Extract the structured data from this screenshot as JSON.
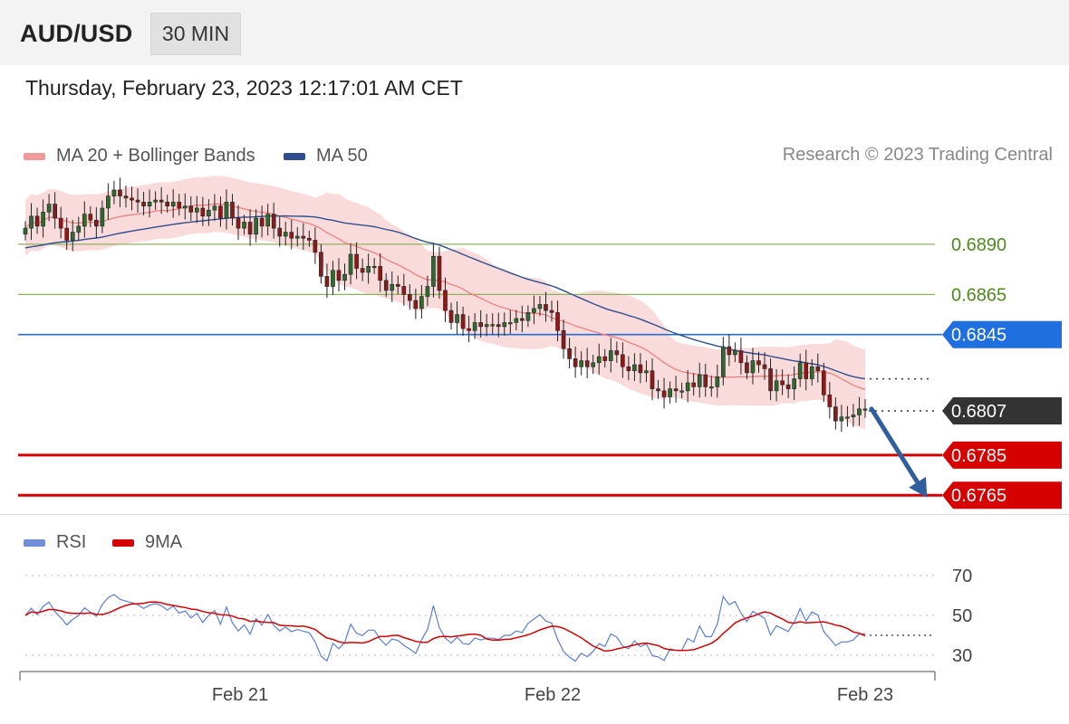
{
  "header": {
    "symbol": "AUD/USD",
    "timeframe": "30 MIN",
    "datetime": "Thursday, February 23, 2023 12:17:01 AM CET",
    "copyright": "Research © 2023 Trading Central"
  },
  "legend_main": [
    {
      "label": "MA 20 + Bollinger Bands",
      "color": "#f08a8a"
    },
    {
      "label": "MA 50",
      "color": "#2f4e8f"
    }
  ],
  "legend_rsi": [
    {
      "label": "RSI",
      "color": "#5b7fd6"
    },
    {
      "label": "9MA",
      "color": "#d60000"
    }
  ],
  "colors": {
    "up_candle": "#2e6b2e",
    "down_candle": "#8b1a1a",
    "bollinger_fill": "#f9d2d2",
    "ma20": "#f08080",
    "ma50": "#2f4e8f",
    "resistance": "#8db35a",
    "pivot": "#1f6fe0",
    "support": "#d60000",
    "current": "#333333",
    "arrow": "#2f5f9f"
  },
  "chart_data": [
    {
      "type": "line",
      "subtype": "candlestick",
      "y_unit": "price",
      "ylim": [
        0.6757,
        0.6926
      ],
      "x_ticks": [
        "Feb 21",
        "Feb 22",
        "Feb 23"
      ],
      "levels": [
        {
          "value": 0.689,
          "label": "0.6890",
          "kind": "resistance"
        },
        {
          "value": 0.6865,
          "label": "0.6865",
          "kind": "resistance"
        },
        {
          "value": 0.6845,
          "label": "0.6845",
          "kind": "pivot"
        },
        {
          "value": 0.6807,
          "label": "0.6807",
          "kind": "current"
        },
        {
          "value": 0.6785,
          "label": "0.6785",
          "kind": "support"
        },
        {
          "value": 0.6765,
          "label": "0.6765",
          "kind": "support"
        }
      ],
      "close": [
        0.6898,
        0.6904,
        0.6899,
        0.6906,
        0.691,
        0.6903,
        0.6898,
        0.6892,
        0.6896,
        0.6899,
        0.6905,
        0.6902,
        0.6899,
        0.6908,
        0.6914,
        0.6917,
        0.6914,
        0.6913,
        0.6912,
        0.6911,
        0.6909,
        0.6911,
        0.6912,
        0.6911,
        0.6909,
        0.6911,
        0.6908,
        0.6909,
        0.6906,
        0.6908,
        0.6904,
        0.6907,
        0.6909,
        0.6903,
        0.6911,
        0.6903,
        0.6898,
        0.6901,
        0.6895,
        0.6903,
        0.6899,
        0.6905,
        0.6898,
        0.6894,
        0.6896,
        0.6893,
        0.6894,
        0.6893,
        0.6892,
        0.6886,
        0.6874,
        0.6869,
        0.6877,
        0.6872,
        0.6875,
        0.6885,
        0.6878,
        0.6876,
        0.6879,
        0.6879,
        0.6872,
        0.6867,
        0.687,
        0.6869,
        0.6865,
        0.6862,
        0.6858,
        0.6864,
        0.6869,
        0.6884,
        0.6867,
        0.6857,
        0.6851,
        0.6855,
        0.6848,
        0.6847,
        0.6851,
        0.6849,
        0.685,
        0.685,
        0.6849,
        0.6851,
        0.6851,
        0.6853,
        0.6852,
        0.6856,
        0.6858,
        0.686,
        0.6857,
        0.6856,
        0.6847,
        0.6838,
        0.6833,
        0.6829,
        0.6832,
        0.6829,
        0.6831,
        0.6834,
        0.6832,
        0.6837,
        0.6835,
        0.6829,
        0.6827,
        0.683,
        0.6826,
        0.6827,
        0.6818,
        0.6817,
        0.6814,
        0.6818,
        0.6817,
        0.6817,
        0.6821,
        0.6819,
        0.6825,
        0.6819,
        0.6819,
        0.6824,
        0.6839,
        0.6835,
        0.6837,
        0.6831,
        0.6826,
        0.6832,
        0.683,
        0.6828,
        0.6817,
        0.6822,
        0.682,
        0.6818,
        0.6823,
        0.6831,
        0.6823,
        0.6829,
        0.6827,
        0.6815,
        0.6809,
        0.6802,
        0.6804,
        0.6804,
        0.6805,
        0.6808,
        0.6808
      ]
    },
    {
      "type": "line",
      "title": "",
      "series": [
        {
          "name": "RSI"
        },
        {
          "name": "9MA"
        }
      ],
      "ylim": [
        25,
        75
      ],
      "y_ticks": [
        70,
        50,
        30
      ],
      "x_ticks": [
        "Feb 21",
        "Feb 22",
        "Feb 23"
      ],
      "rsi_last": 40
    }
  ]
}
